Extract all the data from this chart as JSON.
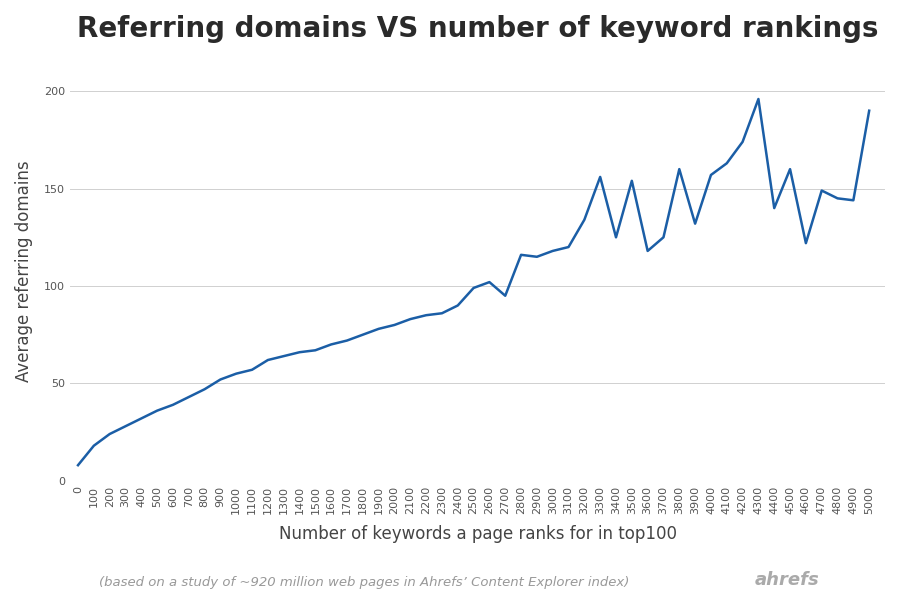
{
  "title": "Referring domains VS number of keyword rankings",
  "xlabel": "Number of keywords a page ranks for in top100",
  "ylabel": "Average referring domains",
  "footnote": "(based on a study of ~920 million web pages in Ahrefs’ Content Explorer index)",
  "ahrefs_label": "ahrefs",
  "line_color": "#1b5ea6",
  "background_color": "#ffffff",
  "x_values": [
    0,
    100,
    200,
    300,
    400,
    500,
    600,
    700,
    800,
    900,
    1000,
    1100,
    1200,
    1300,
    1400,
    1500,
    1600,
    1700,
    1800,
    1900,
    2000,
    2100,
    2200,
    2300,
    2400,
    2500,
    2600,
    2700,
    2800,
    2900,
    3000,
    3100,
    3200,
    3300,
    3400,
    3500,
    3600,
    3700,
    3800,
    3900,
    4000,
    4100,
    4200,
    4300,
    4400,
    4500,
    4600,
    4700,
    4800,
    4900,
    5000
  ],
  "y_values": [
    8,
    18,
    24,
    28,
    32,
    36,
    39,
    43,
    47,
    52,
    55,
    57,
    62,
    64,
    66,
    67,
    70,
    72,
    75,
    78,
    80,
    83,
    85,
    86,
    90,
    99,
    102,
    95,
    116,
    115,
    118,
    120,
    134,
    156,
    125,
    154,
    118,
    125,
    160,
    132,
    157,
    163,
    174,
    196,
    140,
    160,
    122,
    149,
    145,
    144,
    190
  ],
  "xlim": [
    -50,
    5100
  ],
  "ylim": [
    0,
    215
  ],
  "yticks": [
    0,
    50,
    100,
    150,
    200
  ],
  "title_fontsize": 20,
  "axis_label_fontsize": 12,
  "tick_fontsize": 8,
  "footnote_fontsize": 9.5,
  "ahrefs_fontsize": 13,
  "line_width": 1.8,
  "grid_color": "#d0d0d0",
  "grid_linewidth": 0.7,
  "tick_color": "#555555",
  "label_color": "#444444",
  "footnote_color": "#999999",
  "ahrefs_color": "#aaaaaa"
}
